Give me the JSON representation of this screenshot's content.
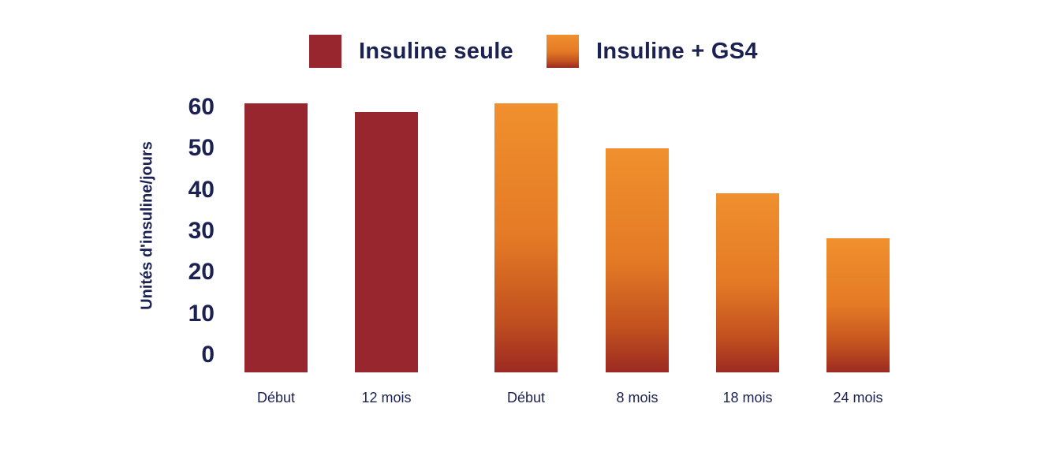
{
  "chart_data": {
    "type": "bar",
    "title": "",
    "xlabel": "",
    "ylabel": "Unités d'insuline/jours",
    "ylim": [
      0,
      60
    ],
    "yticks": [
      0,
      10,
      20,
      30,
      40,
      50,
      60
    ],
    "grid": false,
    "legend_position": "top",
    "legend": [
      {
        "label": "Insuline seule",
        "color": "#97262f"
      },
      {
        "label": "Insuline + GS4",
        "gradient": [
          "#f0902e",
          "#e47a25",
          "#c2511f",
          "#9c2a22"
        ]
      }
    ],
    "series": [
      {
        "name": "Insuline seule",
        "categories": [
          "Début",
          "12 mois"
        ],
        "values": [
          60,
          58
        ]
      },
      {
        "name": "Insuline + GS4",
        "categories": [
          "Début",
          "8 mois",
          "18 mois",
          "24 mois"
        ],
        "values": [
          60,
          50,
          40,
          30
        ]
      }
    ],
    "bars": [
      {
        "category": "Début",
        "series": "Insuline seule",
        "value": 60
      },
      {
        "category": "12 mois",
        "series": "Insuline seule",
        "value": 58
      },
      {
        "category": "Début",
        "series": "Insuline + GS4",
        "value": 60
      },
      {
        "category": "8 mois",
        "series": "Insuline + GS4",
        "value": 50
      },
      {
        "category": "18 mois",
        "series": "Insuline + GS4",
        "value": 40
      },
      {
        "category": "24 mois",
        "series": "Insuline + GS4",
        "value": 30
      }
    ]
  },
  "colors": {
    "text": "#1b2150",
    "background": "#ffffff",
    "red_series": "#97262f",
    "orange_top": "#f0902e",
    "orange_bottom": "#9c2a22"
  }
}
